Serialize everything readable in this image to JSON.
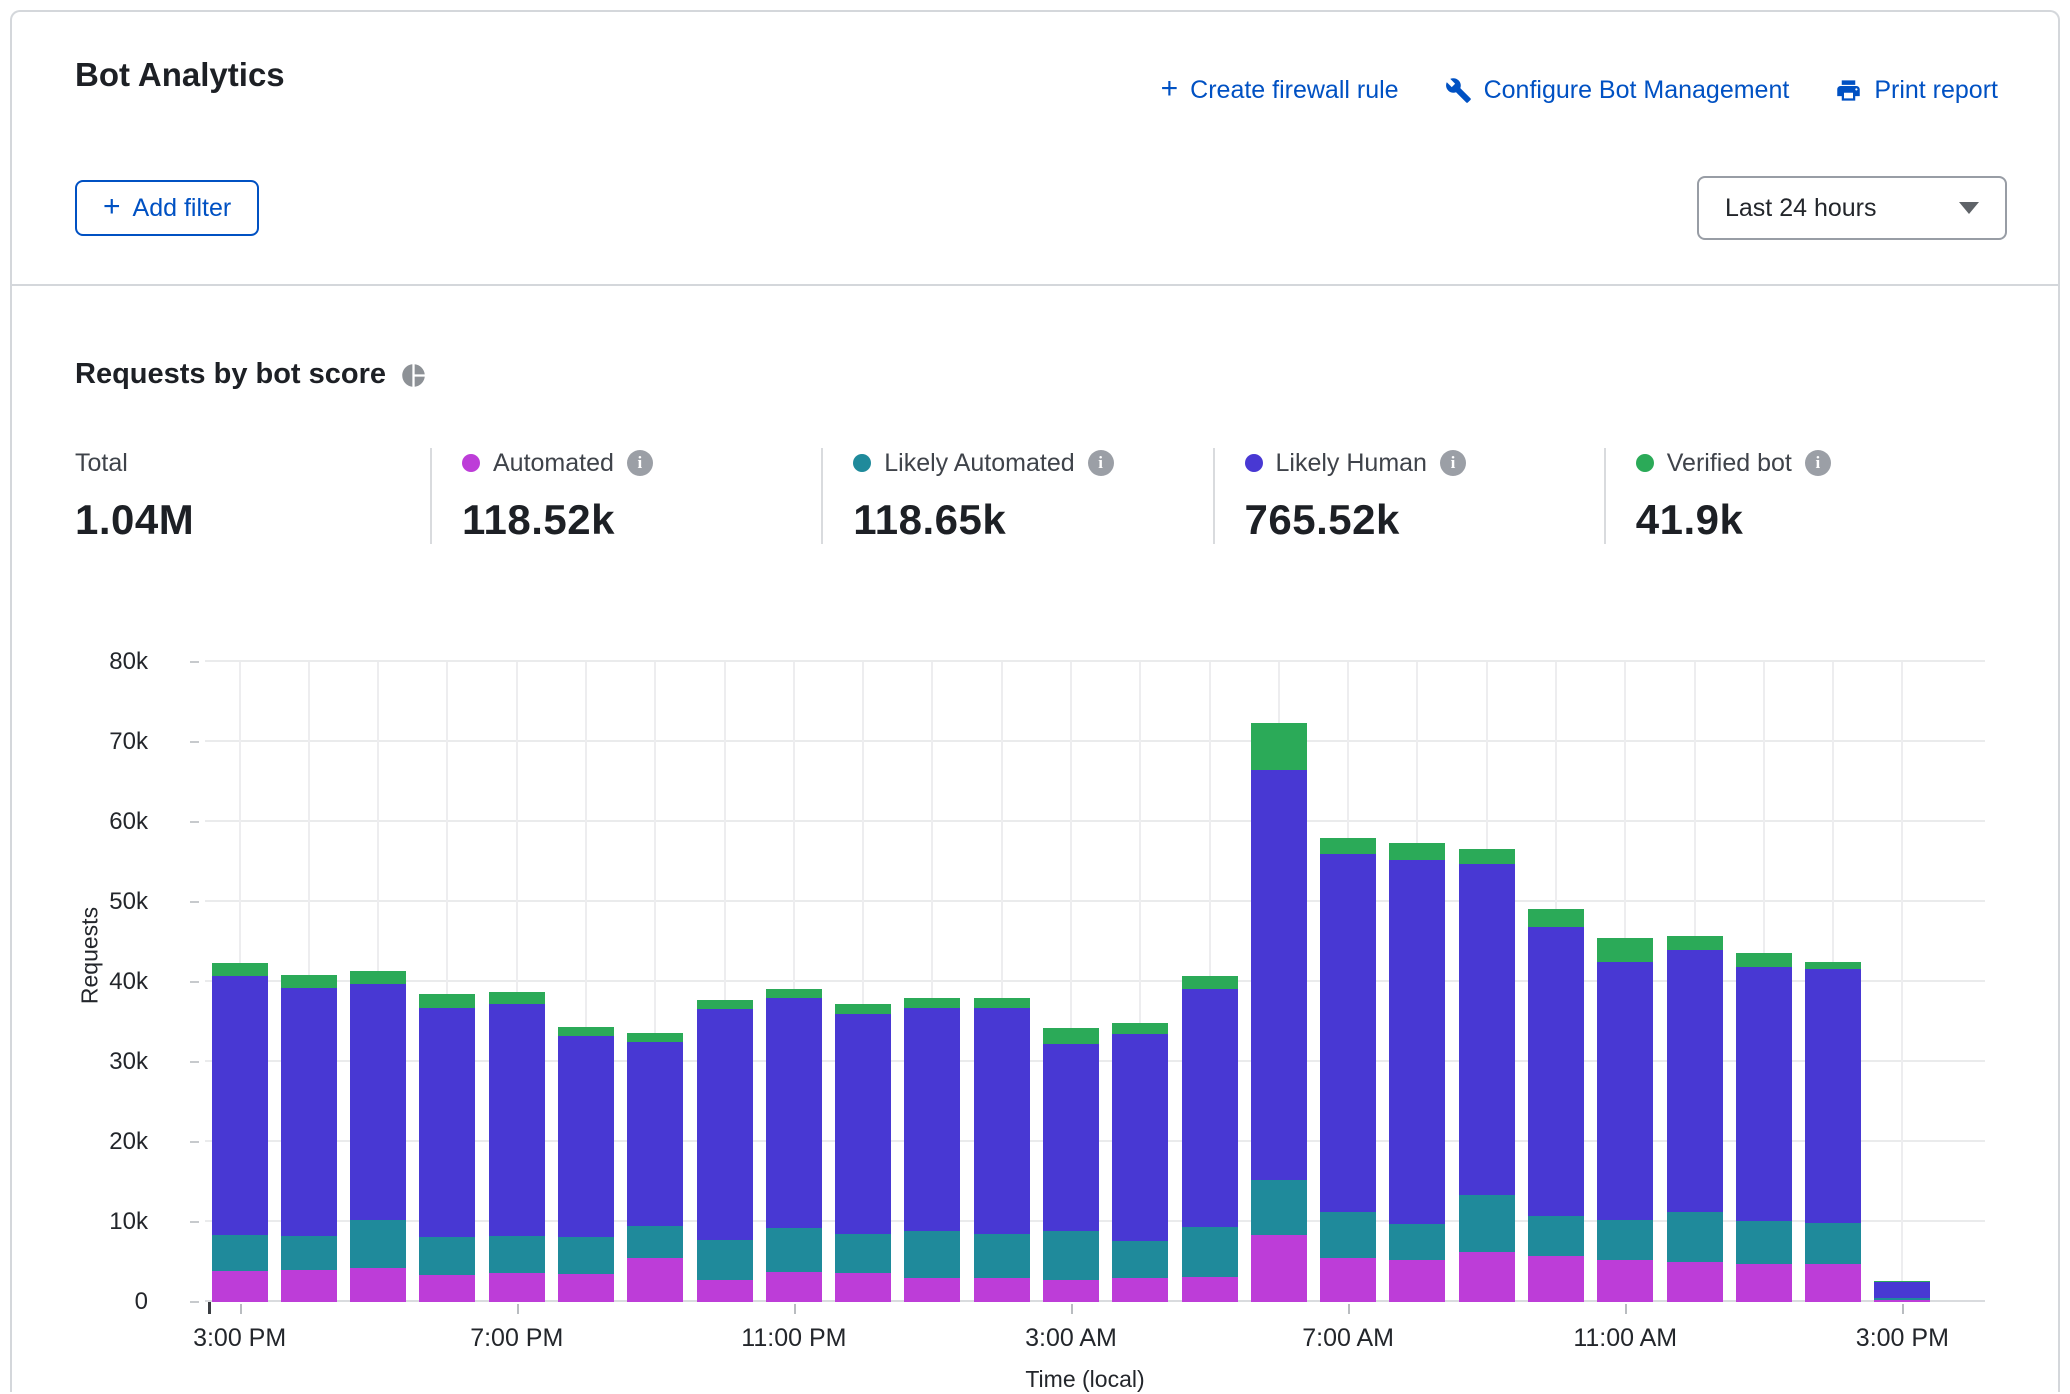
{
  "header": {
    "title": "Bot Analytics",
    "actions": [
      {
        "label": "Create firewall rule",
        "icon": "plus-icon"
      },
      {
        "label": "Configure Bot Management",
        "icon": "wrench-icon"
      },
      {
        "label": "Print report",
        "icon": "printer-icon"
      }
    ],
    "add_filter_label": "Add filter",
    "time_range_value": "Last 24 hours"
  },
  "section": {
    "title": "Requests by bot score",
    "stats": [
      {
        "label": "Total",
        "value": "1.04M",
        "color": null
      },
      {
        "label": "Automated",
        "value": "118.52k",
        "color": "#bd3dd8"
      },
      {
        "label": "Likely Automated",
        "value": "118.65k",
        "color": "#1f8a9b"
      },
      {
        "label": "Likely Human",
        "value": "765.52k",
        "color": "#4838d3"
      },
      {
        "label": "Verified bot",
        "value": "41.9k",
        "color": "#2baa58"
      }
    ]
  },
  "chart_data": {
    "type": "bar",
    "stacked": true,
    "title": "Requests by bot score",
    "xlabel": "Time (local)",
    "ylabel": "Requests",
    "unit": "thousands of requests",
    "ylim": [
      0,
      80
    ],
    "grid": true,
    "y_ticks": [
      "0",
      "10k",
      "20k",
      "30k",
      "40k",
      "50k",
      "60k",
      "70k",
      "80k"
    ],
    "x_tick_indices": [
      0,
      4,
      8,
      12,
      16,
      20,
      24
    ],
    "x_tick_labels": [
      "3:00 PM",
      "7:00 PM",
      "11:00 PM",
      "3:00 AM",
      "7:00 AM",
      "11:00 AM",
      "3:00 PM"
    ],
    "categories": [
      "3 PM",
      "4 PM",
      "5 PM",
      "6 PM",
      "7 PM",
      "8 PM",
      "9 PM",
      "10 PM",
      "11 PM",
      "12 AM",
      "1 AM",
      "2 AM",
      "3 AM",
      "4 AM",
      "5 AM",
      "6 AM",
      "7 AM",
      "8 AM",
      "9 AM",
      "10 AM",
      "11 AM",
      "12 PM",
      "1 PM",
      "2 PM",
      "3 PM"
    ],
    "series": [
      {
        "name": "Automated",
        "color": "#bd3dd8",
        "values": [
          3.9,
          4.0,
          4.2,
          3.4,
          3.6,
          3.5,
          5.5,
          2.7,
          3.8,
          3.6,
          3.0,
          3.0,
          2.8,
          3.0,
          3.1,
          8.4,
          5.5,
          5.2,
          6.2,
          5.8,
          5.3,
          5.0,
          4.8,
          4.7,
          0.2
        ]
      },
      {
        "name": "Likely Automated",
        "color": "#1f8a9b",
        "values": [
          4.5,
          4.3,
          6.1,
          4.7,
          4.7,
          4.6,
          4.0,
          5.1,
          5.4,
          4.9,
          5.9,
          5.5,
          6.1,
          4.6,
          6.3,
          6.9,
          5.8,
          4.6,
          7.2,
          5.0,
          4.9,
          6.2,
          5.3,
          5.2,
          0.3
        ]
      },
      {
        "name": "Likely Human",
        "color": "#4838d3",
        "values": [
          32.3,
          30.9,
          29.4,
          28.7,
          28.9,
          25.1,
          23.0,
          28.8,
          28.8,
          27.5,
          27.9,
          28.2,
          23.3,
          25.9,
          29.7,
          51.2,
          44.7,
          45.5,
          41.4,
          36.1,
          32.3,
          32.8,
          31.8,
          31.7,
          2.0
        ]
      },
      {
        "name": "Verified bot",
        "color": "#2baa58",
        "values": [
          1.7,
          1.7,
          1.7,
          1.7,
          1.6,
          1.2,
          1.1,
          1.2,
          1.1,
          1.2,
          1.2,
          1.3,
          2.0,
          1.4,
          1.6,
          5.9,
          2.0,
          2.1,
          1.8,
          2.2,
          3.0,
          1.8,
          1.7,
          0.9,
          0.1
        ]
      }
    ]
  }
}
